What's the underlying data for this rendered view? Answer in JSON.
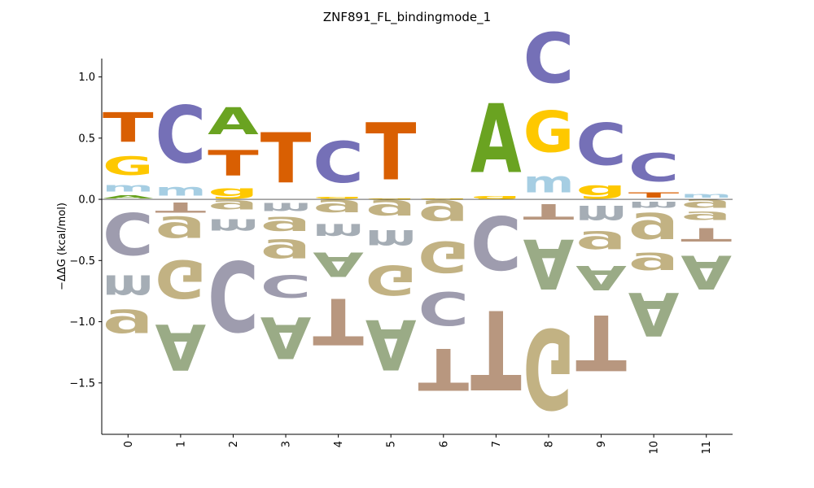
{
  "chart_data": {
    "type": "sequence_logo",
    "title": "ZNF891_FL_bindingmode_1",
    "xlabel": "",
    "ylabel": "−ΔΔG (kcal/mol)",
    "ylim": [
      -1.92,
      1.15
    ],
    "yticks": [
      "1.0",
      "0.5",
      "0.0",
      "−0.5",
      "−1.0",
      "−1.5"
    ],
    "ytick_values": [
      1.0,
      0.5,
      0.0,
      -0.5,
      -1.0,
      -1.5
    ],
    "positions": [
      "0",
      "1",
      "2",
      "3",
      "4",
      "5",
      "6",
      "7",
      "8",
      "9",
      "10",
      "11"
    ],
    "colors": {
      "A": "#6aa321",
      "C": "#7570b7",
      "G": "#fec800",
      "T": "#d95f02",
      "m": "#a6cee3",
      "g": "#fec800"
    },
    "neg_colors": {
      "A": "#9aab86",
      "C": "#9e9cae",
      "G": "#c2b283",
      "T": "#b8977f",
      "m": "#a5adb5",
      "g": "#c2b283"
    },
    "columns": [
      {
        "pos": [
          [
            "A",
            0.04
          ],
          [
            "m",
            0.11
          ],
          [
            "G",
            0.24
          ],
          [
            "T",
            0.39
          ]
        ],
        "neg": [
          [
            "C",
            -0.55
          ],
          [
            "m",
            -0.34
          ],
          [
            "g",
            -0.3
          ]
        ]
      },
      {
        "pos": [
          [
            "m",
            0.15
          ],
          [
            "C",
            0.75
          ]
        ],
        "neg": [
          [
            "T",
            -0.13
          ],
          [
            "g",
            -0.27
          ],
          [
            "G",
            -0.5
          ],
          [
            "A",
            -0.6
          ]
        ]
      },
      {
        "pos": [
          [
            "g",
            0.13
          ],
          [
            "T",
            0.33
          ],
          [
            "A",
            0.35
          ]
        ],
        "neg": [
          [
            "g",
            -0.12
          ],
          [
            "m",
            -0.2
          ],
          [
            "C",
            -0.92
          ]
        ]
      },
      {
        "pos": [
          [
            "T",
            0.66
          ]
        ],
        "neg": [
          [
            "m",
            -0.14
          ],
          [
            "g",
            -0.18
          ],
          [
            "g",
            -0.24
          ],
          [
            "C",
            -0.29
          ],
          [
            "A",
            -0.55
          ]
        ]
      },
      {
        "pos": [
          [
            "g",
            0.03
          ],
          [
            "C",
            0.54
          ]
        ],
        "neg": [
          [
            "g",
            -0.16
          ],
          [
            "m",
            -0.21
          ],
          [
            "A",
            -0.32
          ],
          [
            "T",
            -0.61
          ]
        ]
      },
      {
        "pos": [
          [
            "g",
            0.01
          ],
          [
            "T",
            0.75
          ]
        ],
        "neg": [
          [
            "g",
            -0.2
          ],
          [
            "m",
            -0.26
          ],
          [
            "G",
            -0.39
          ],
          [
            "A",
            -0.66
          ]
        ]
      },
      {
        "pos": [
          [
            "g",
            0.01
          ]
        ],
        "neg": [
          [
            "g",
            -0.26
          ],
          [
            "G",
            -0.41
          ],
          [
            "C",
            -0.44
          ],
          [
            "T",
            -0.55
          ]
        ]
      },
      {
        "pos": [
          [
            "g",
            0.04
          ],
          [
            "A",
            0.9
          ]
        ],
        "neg": [
          [
            "C",
            -0.7
          ],
          [
            "T",
            -1.04
          ]
        ]
      },
      {
        "pos": [
          [
            "m",
            0.28
          ],
          [
            "G",
            0.54
          ],
          [
            "C",
            0.66
          ]
        ],
        "neg": [
          [
            "T",
            -0.2
          ],
          [
            "A",
            -0.65
          ],
          [
            "G",
            -1.05
          ]
        ]
      },
      {
        "pos": [
          [
            "g",
            0.17
          ],
          [
            "C",
            0.55
          ]
        ],
        "neg": [
          [
            "m",
            -0.25
          ],
          [
            "g",
            -0.23
          ],
          [
            "A",
            -0.32
          ],
          [
            "T",
            -0.73
          ]
        ]
      },
      {
        "pos": [
          [
            "T",
            0.07
          ],
          [
            "C",
            0.37
          ]
        ],
        "neg": [
          [
            "m",
            -0.1
          ],
          [
            "g",
            -0.33
          ],
          [
            "g",
            -0.22
          ],
          [
            "A",
            -0.57
          ]
        ]
      },
      {
        "pos": [
          [
            "m",
            0.06
          ]
        ],
        "neg": [
          [
            "g",
            -0.1
          ],
          [
            "g",
            -0.1
          ],
          [
            "T",
            -0.17
          ],
          [
            "A",
            -0.44
          ]
        ]
      }
    ]
  }
}
